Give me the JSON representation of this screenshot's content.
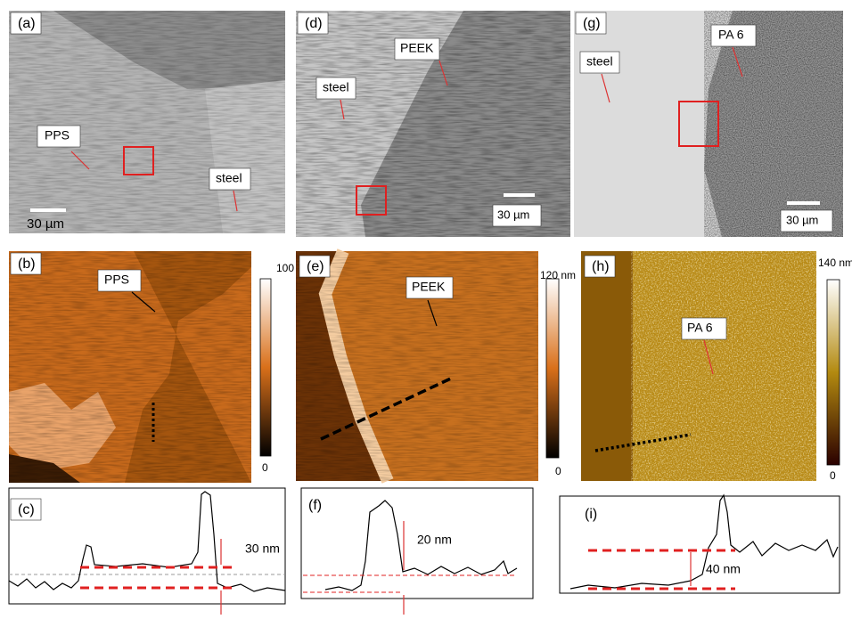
{
  "microscopy": [
    {
      "label": "(a)",
      "annotations": [
        "PPS",
        "steel"
      ],
      "scale_bar": "30 µm"
    },
    {
      "label": "(d)",
      "annotations": [
        "PEEK",
        "steel"
      ],
      "scale_bar": "30 µm"
    },
    {
      "label": "(g)",
      "annotations": [
        "PA 6",
        "steel"
      ],
      "scale_bar": "30 µm"
    }
  ],
  "afm": [
    {
      "label": "(b)",
      "annotation": "PPS",
      "colorbar_max": "100 nm",
      "colorbar_min": "0"
    },
    {
      "label": "(e)",
      "annotation": "PEEK",
      "colorbar_max": "120 nm",
      "colorbar_min": "0"
    },
    {
      "label": "(h)",
      "annotation": "PA 6",
      "colorbar_max": "140 nm",
      "colorbar_min": "0"
    }
  ],
  "profiles": [
    {
      "label": "(c)",
      "step": "30 nm"
    },
    {
      "label": "(f)",
      "step": "20 nm"
    },
    {
      "label": "(i)",
      "step": "40 nm"
    }
  ]
}
